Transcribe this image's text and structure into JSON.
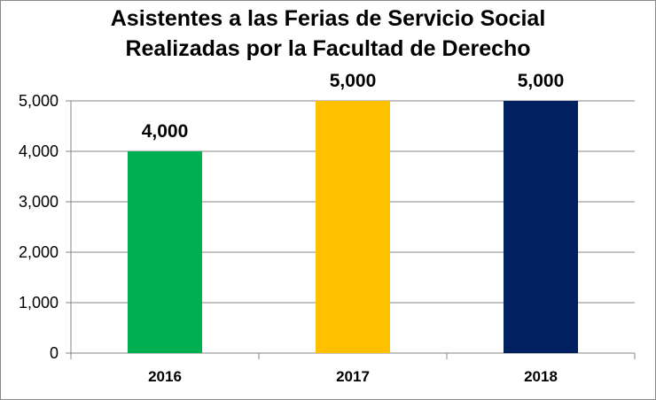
{
  "chart_data": {
    "type": "bar",
    "title_line1": "Asistentes a las Ferias de Servicio Social",
    "title_line2": "Realizadas por la Facultad de Derecho",
    "categories": [
      "2016",
      "2017",
      "2018"
    ],
    "values": [
      4000,
      5000,
      5000
    ],
    "data_labels": [
      "4,000",
      "5,000",
      "5,000"
    ],
    "bar_colors": [
      "#00b050",
      "#ffc000",
      "#002060"
    ],
    "ylim": [
      0,
      5000
    ],
    "yticks": [
      0,
      1000,
      2000,
      3000,
      4000,
      5000
    ],
    "ytick_labels": [
      "0",
      "1,000",
      "2,000",
      "3,000",
      "4,000",
      "5,000"
    ],
    "grid": true,
    "legend": "none"
  }
}
